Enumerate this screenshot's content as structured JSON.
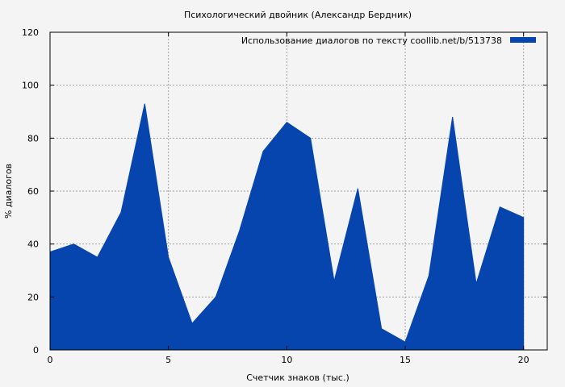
{
  "chart_data": {
    "type": "area",
    "title": "Психологический двойник (Александр Бердник)",
    "xlabel": "Счетчик знаков (тыс.)",
    "ylabel": "% диалогов",
    "xlim": [
      0,
      21
    ],
    "ylim": [
      0,
      120
    ],
    "xticks": [
      0,
      5,
      10,
      15,
      20
    ],
    "yticks": [
      0,
      20,
      40,
      60,
      80,
      100,
      120
    ],
    "grid": true,
    "legend_position": "top-right",
    "series": [
      {
        "name": "Использование диалогов по тексту  coollib.net/b/513738",
        "color": "#0645ad",
        "x": [
          0,
          1,
          2,
          3,
          4,
          5,
          6,
          7,
          8,
          9,
          10,
          11,
          12,
          13,
          14,
          15,
          16,
          17,
          18,
          19,
          20
        ],
        "values": [
          37,
          40,
          35,
          52,
          93,
          35,
          10,
          20,
          45,
          75,
          86,
          80,
          26,
          61,
          8,
          3,
          28,
          88,
          25,
          54,
          50
        ]
      }
    ]
  }
}
